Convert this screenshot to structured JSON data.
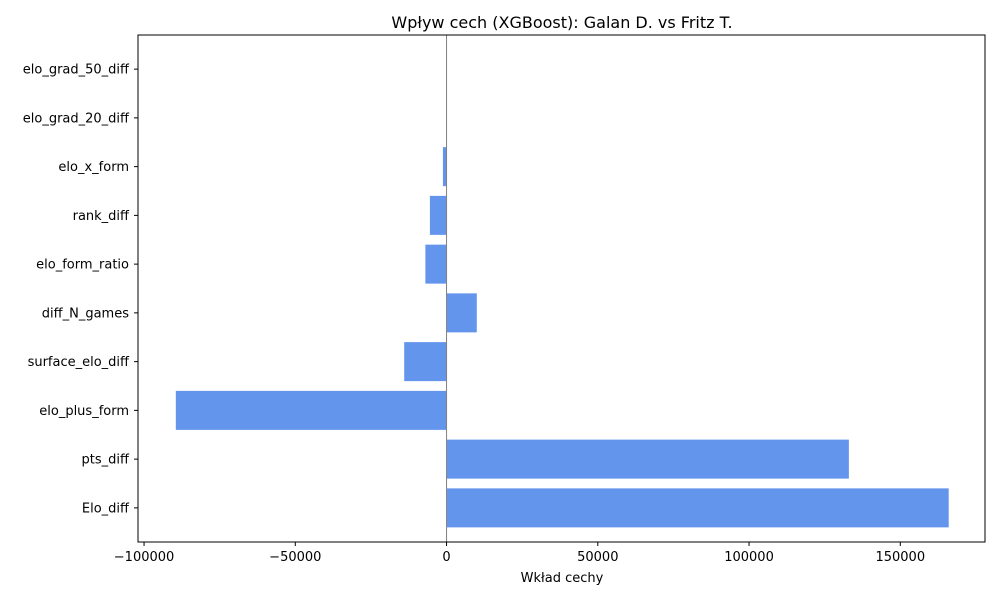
{
  "chart_data": {
    "type": "bar",
    "orientation": "horizontal",
    "title": "Wpływ cech (XGBoost): Galan D. vs Fritz T.",
    "xlabel": "Wkład cechy",
    "ylabel": "",
    "categories": [
      "Elo_diff",
      "pts_diff",
      "elo_plus_form",
      "surface_elo_diff",
      "diff_N_games",
      "elo_form_ratio",
      "rank_diff",
      "elo_x_form",
      "elo_grad_20_diff",
      "elo_grad_50_diff"
    ],
    "values": [
      166000,
      133000,
      -89500,
      -14000,
      10000,
      -7000,
      -5500,
      -1200,
      0,
      0
    ],
    "xlim": [
      -102000,
      178000
    ],
    "xticks": [
      -100000,
      -50000,
      0,
      50000,
      100000,
      150000
    ],
    "xtick_labels": [
      "−100000",
      "−50000",
      "0",
      "50000",
      "100000",
      "150000"
    ],
    "bar_color": "#6495ED",
    "zero_line_color": "#808080",
    "grid": false,
    "legend": "none"
  }
}
